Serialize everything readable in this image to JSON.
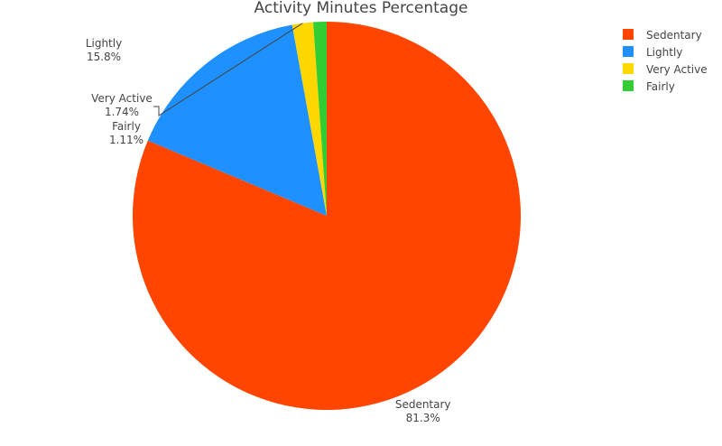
{
  "chart_data": {
    "type": "pie",
    "title": "Activity Minutes Percentage",
    "legend_position": "top-right",
    "direction": "clockwise",
    "slices": [
      {
        "label": "Sedentary",
        "value": 81.3,
        "display": "81.3%",
        "color": "#ff4500"
      },
      {
        "label": "Lightly",
        "value": 15.8,
        "display": "15.8%",
        "color": "#1e90ff"
      },
      {
        "label": "Very Active",
        "value": 1.74,
        "display": "1.74%",
        "color": "#ffd700"
      },
      {
        "label": "Fairly",
        "value": 1.11,
        "display": "1.11%",
        "color": "#32cd32"
      }
    ],
    "legend": [
      "Sedentary",
      "Lightly",
      "Very Active",
      "Fairly"
    ]
  }
}
